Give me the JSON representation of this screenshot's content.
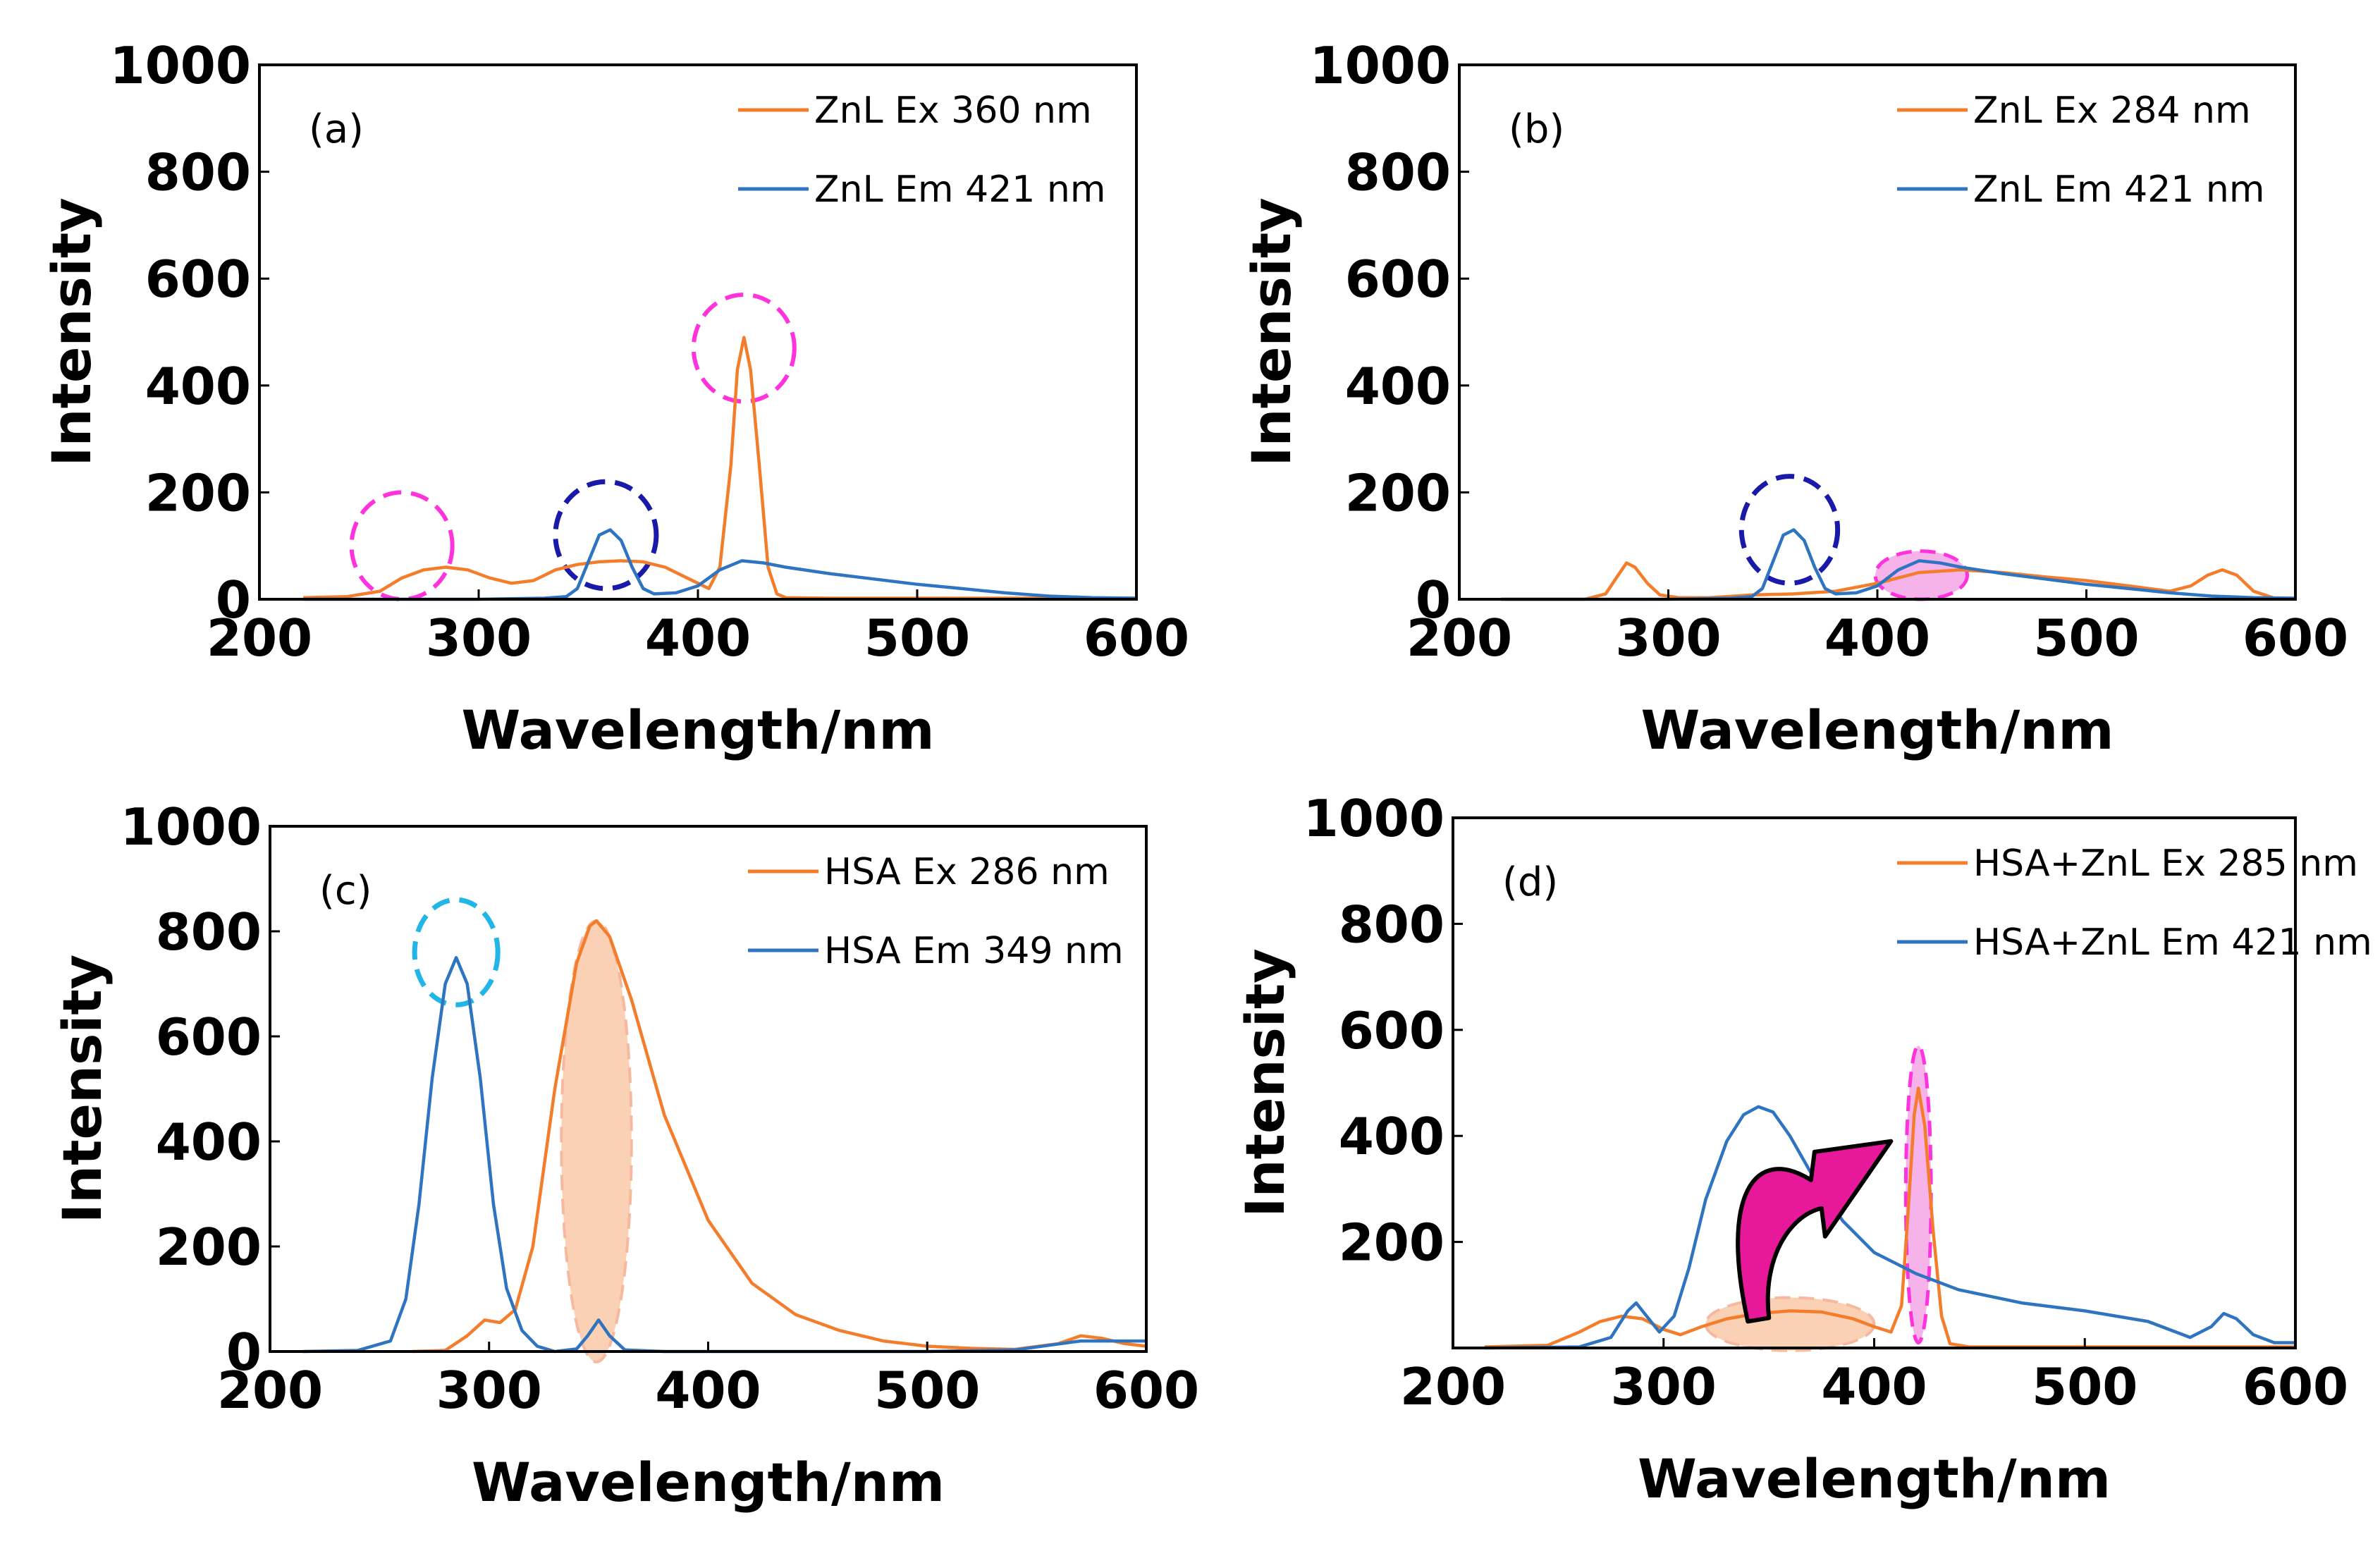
{
  "colors": {
    "excitation": "#F47D2C",
    "emission": "#2F74C0",
    "highlight_magenta": "#FF33DD",
    "highlight_navy": "#1A1AAA",
    "highlight_cyan": "#22B5E8",
    "fill_orange": "#F9C9A8",
    "fill_pink": "#F3A6E6",
    "arrow_fill": "#E8189A"
  },
  "chart_data": [
    {
      "type": "line",
      "panel_label": "(a)",
      "title": "",
      "xlabel": "Wavelength/nm",
      "ylabel": "Intensity",
      "xlim": [
        200,
        600
      ],
      "ylim": [
        0,
        1000
      ],
      "xticks": [
        "200",
        "300",
        "400",
        "500",
        "600"
      ],
      "yticks": [
        "0",
        "200",
        "400",
        "600",
        "800",
        "1000"
      ],
      "legend_position": "top-right",
      "series": [
        {
          "name": "ZnL Ex 360 nm",
          "color": "#F47D2C",
          "x": [
            220,
            240,
            255,
            265,
            275,
            285,
            295,
            305,
            315,
            325,
            335,
            345,
            355,
            365,
            375,
            385,
            395,
            405,
            410,
            415,
            418,
            421,
            424,
            428,
            432,
            436,
            440,
            460,
            500,
            550,
            600
          ],
          "y": [
            3,
            5,
            15,
            40,
            55,
            60,
            55,
            40,
            30,
            35,
            55,
            65,
            70,
            72,
            70,
            60,
            40,
            20,
            60,
            250,
            430,
            490,
            430,
            250,
            60,
            10,
            3,
            2,
            2,
            2,
            2
          ]
        },
        {
          "name": "ZnL Em 421 nm",
          "color": "#2F74C0",
          "x": [
            220,
            300,
            330,
            340,
            345,
            350,
            355,
            360,
            365,
            370,
            375,
            380,
            390,
            400,
            410,
            420,
            430,
            440,
            460,
            480,
            500,
            520,
            540,
            560,
            580,
            600
          ],
          "y": [
            0,
            0,
            2,
            5,
            20,
            70,
            120,
            130,
            110,
            60,
            20,
            10,
            12,
            25,
            55,
            72,
            68,
            60,
            48,
            38,
            28,
            20,
            12,
            6,
            3,
            2
          ]
        }
      ],
      "annotations": [
        "dashed magenta circle ~265 nm",
        "dashed navy circle ~358 nm",
        "dashed magenta circle ~421 nm peak"
      ]
    },
    {
      "type": "line",
      "panel_label": "(b)",
      "title": "",
      "xlabel": "Wavelength/nm",
      "ylabel": "Intensity",
      "xlim": [
        200,
        600
      ],
      "ylim": [
        0,
        1000
      ],
      "xticks": [
        "200",
        "300",
        "400",
        "500",
        "600"
      ],
      "yticks": [
        "0",
        "200",
        "400",
        "600",
        "800",
        "1000"
      ],
      "legend_position": "top-right",
      "series": [
        {
          "name": "ZnL Ex 284 nm",
          "color": "#F47D2C",
          "x": [
            220,
            260,
            270,
            276,
            280,
            284,
            290,
            296,
            305,
            320,
            340,
            360,
            380,
            400,
            420,
            440,
            460,
            480,
            500,
            520,
            540,
            550,
            558,
            565,
            572,
            580,
            590,
            600
          ],
          "y": [
            0,
            0,
            10,
            45,
            68,
            60,
            30,
            8,
            3,
            3,
            8,
            10,
            15,
            30,
            50,
            55,
            50,
            42,
            35,
            25,
            15,
            25,
            45,
            55,
            45,
            15,
            2,
            0
          ]
        },
        {
          "name": "ZnL Em 421 nm",
          "color": "#2F74C0",
          "x": [
            220,
            300,
            330,
            340,
            345,
            350,
            355,
            360,
            365,
            370,
            375,
            380,
            390,
            400,
            410,
            420,
            430,
            440,
            460,
            480,
            500,
            520,
            540,
            560,
            580,
            600
          ],
          "y": [
            0,
            0,
            2,
            5,
            20,
            70,
            120,
            130,
            110,
            60,
            20,
            10,
            12,
            25,
            55,
            72,
            68,
            60,
            48,
            38,
            28,
            20,
            12,
            6,
            3,
            2
          ]
        }
      ],
      "annotations": [
        "dashed navy circle ~358 nm",
        "filled pink ellipse ~421 nm"
      ]
    },
    {
      "type": "line",
      "panel_label": "(c)",
      "title": "",
      "xlabel": "Wavelength/nm",
      "ylabel": "Intensity",
      "xlim": [
        200,
        600
      ],
      "ylim": [
        0,
        1000
      ],
      "xticks": [
        "200",
        "300",
        "400",
        "500",
        "600"
      ],
      "yticks": [
        "0",
        "200",
        "400",
        "600",
        "800",
        "1000"
      ],
      "legend_position": "top-right",
      "series": [
        {
          "name": "HSA Ex 286 nm",
          "color": "#F47D2C",
          "x": [
            265,
            280,
            290,
            298,
            305,
            312,
            320,
            330,
            340,
            346,
            349,
            355,
            365,
            380,
            400,
            420,
            440,
            460,
            480,
            500,
            520,
            540,
            560,
            570,
            580,
            590,
            600
          ],
          "y": [
            0,
            2,
            30,
            60,
            55,
            80,
            200,
            500,
            740,
            810,
            820,
            790,
            670,
            450,
            250,
            130,
            70,
            40,
            20,
            10,
            6,
            4,
            15,
            30,
            25,
            15,
            10
          ]
        },
        {
          "name": "HSA Em 349 nm",
          "color": "#2F74C0",
          "x": [
            215,
            240,
            255,
            262,
            268,
            274,
            280,
            285,
            290,
            296,
            302,
            308,
            315,
            322,
            330,
            340,
            345,
            350,
            355,
            362,
            380,
            500,
            540,
            570,
            600
          ],
          "y": [
            0,
            2,
            20,
            100,
            280,
            520,
            700,
            750,
            700,
            520,
            280,
            120,
            40,
            10,
            0,
            5,
            30,
            60,
            30,
            3,
            0,
            0,
            3,
            20,
            20
          ]
        }
      ],
      "annotations": [
        "dashed cyan circle ~285 nm peak",
        "filled orange ellipse ~349 nm"
      ]
    },
    {
      "type": "line",
      "panel_label": "(d)",
      "title": "",
      "xlabel": "Wavelength/nm",
      "ylabel": "Intensity",
      "xlim": [
        200,
        600
      ],
      "ylim": [
        0,
        1000
      ],
      "xticks": [
        "200",
        "300",
        "400",
        "500",
        "600"
      ],
      "yticks": [
        "",
        "200",
        "400",
        "600",
        "800",
        "1000"
      ],
      "legend_position": "top-right",
      "series": [
        {
          "name": "HSA+ZnL Ex 285 nm",
          "color": "#F47D2C",
          "x": [
            215,
            245,
            260,
            270,
            280,
            290,
            300,
            308,
            318,
            330,
            345,
            360,
            375,
            390,
            400,
            408,
            413,
            416,
            419,
            421,
            424,
            428,
            432,
            436,
            445,
            600
          ],
          "y": [
            2,
            5,
            30,
            50,
            60,
            55,
            35,
            25,
            40,
            55,
            65,
            70,
            68,
            55,
            40,
            30,
            80,
            250,
            440,
            490,
            420,
            220,
            60,
            8,
            2,
            2
          ]
        },
        {
          "name": "HSA+ZnL  Em 421 nm",
          "color": "#2F74C0",
          "x": [
            215,
            260,
            275,
            283,
            287,
            292,
            298,
            305,
            312,
            320,
            330,
            338,
            345,
            352,
            360,
            370,
            385,
            400,
            420,
            440,
            470,
            500,
            530,
            550,
            560,
            566,
            572,
            580,
            590,
            600
          ],
          "y": [
            0,
            2,
            20,
            70,
            85,
            60,
            30,
            60,
            150,
            280,
            390,
            440,
            455,
            445,
            400,
            330,
            240,
            180,
            140,
            110,
            85,
            70,
            50,
            20,
            40,
            65,
            55,
            25,
            10,
            10
          ]
        }
      ],
      "annotations": [
        "filled orange ellipse ~360 nm",
        "filled pink ellipse ~421 nm peak",
        "magenta curved arrow from donor to acceptor"
      ]
    }
  ]
}
